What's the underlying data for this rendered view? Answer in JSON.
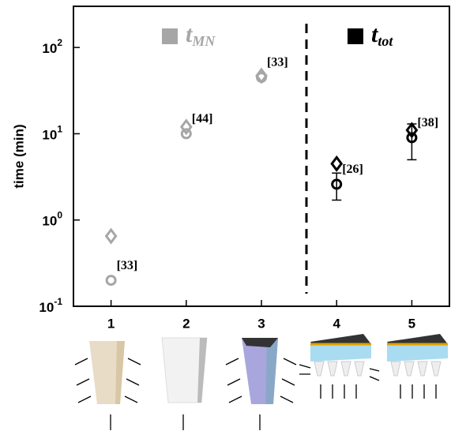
{
  "chart_data": {
    "type": "scatter",
    "y_label": "time (min)",
    "log_y": true,
    "xlim": [
      0.5,
      5.5
    ],
    "xticks": [
      1,
      2,
      3,
      4,
      5
    ],
    "ylim": [
      0.1,
      300
    ],
    "yticks": [
      {
        "value": 0.1,
        "label": "10",
        "exponent": "-1"
      },
      {
        "value": 1,
        "label": "10",
        "exponent": "0"
      },
      {
        "value": 10,
        "label": "10",
        "exponent": "1"
      },
      {
        "value": 100,
        "label": "10",
        "exponent": "2"
      }
    ],
    "series": [
      {
        "name": "t",
        "name_sub": "MN",
        "color": "#a6a6a6",
        "x": [
          1,
          2,
          3
        ],
        "circle": [
          0.2,
          10,
          45
        ],
        "diamond": [
          0.65,
          12,
          47
        ],
        "refs": [
          "[33]",
          "[44]",
          "[33]"
        ]
      },
      {
        "name": "t",
        "name_sub": "tot",
        "color": "#000000",
        "x": [
          4,
          5
        ],
        "circle": [
          2.6,
          9
        ],
        "circle_error": [
          0.9,
          4
        ],
        "diamond": [
          4.5,
          11
        ],
        "refs": [
          "[26]",
          "[38]"
        ]
      }
    ]
  }
}
